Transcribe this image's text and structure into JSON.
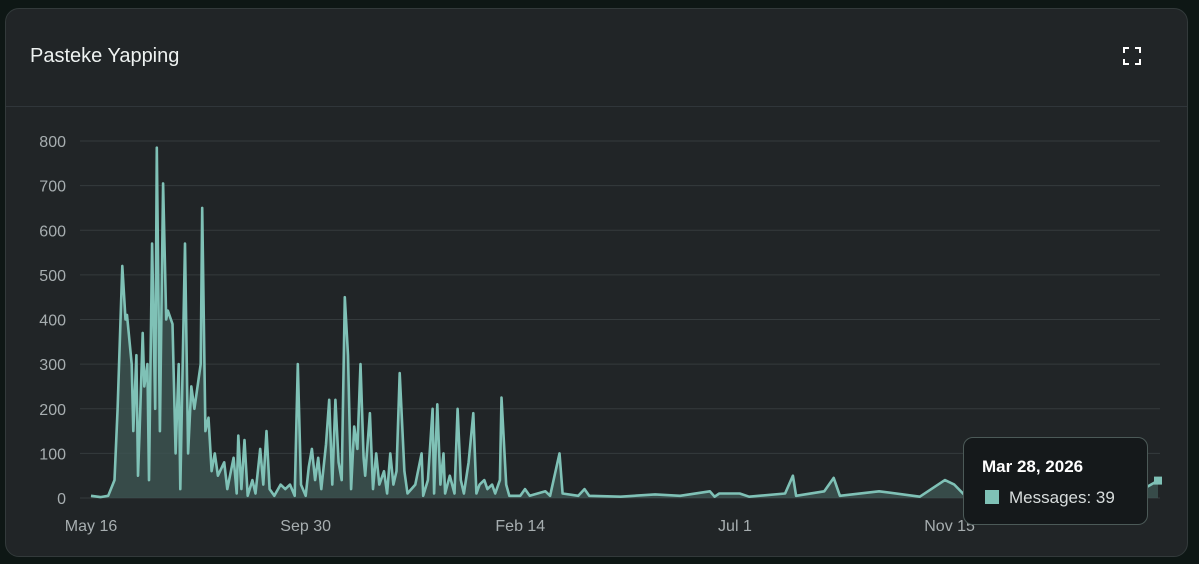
{
  "header": {
    "title": "Pasteke Yapping",
    "expand_icon": "expand-icon"
  },
  "colors": {
    "line": "#7fc1b6",
    "fill": "#3d5552",
    "grid": "#353b3d",
    "background": "#212527"
  },
  "tooltip": {
    "date": "Mar 28, 2026",
    "label": "Messages: 39",
    "series": "Messages",
    "value": 39
  },
  "chart_data": {
    "type": "area",
    "title": "Pasteke Yapping",
    "xlabel": "",
    "ylabel": "",
    "ylim": [
      0,
      800
    ],
    "xlim": [
      "2024-05-16",
      "2026-03-28"
    ],
    "grid": true,
    "yticks": [
      "0",
      "100",
      "200",
      "300",
      "400",
      "500",
      "600",
      "700",
      "800"
    ],
    "xticks": [
      {
        "label": "May 16",
        "date": "2024-05-16"
      },
      {
        "label": "Sep 30",
        "date": "2024-09-30"
      },
      {
        "label": "Feb 14",
        "date": "2025-02-14"
      },
      {
        "label": "Jul 1",
        "date": "2025-07-01"
      },
      {
        "label": "Nov 15",
        "date": "2025-11-15"
      }
    ],
    "series": [
      {
        "name": "Messages",
        "points": [
          [
            "2024-05-16",
            5
          ],
          [
            "2024-05-22",
            2
          ],
          [
            "2024-05-27",
            5
          ],
          [
            "2024-05-31",
            40
          ],
          [
            "2024-06-02",
            200
          ],
          [
            "2024-06-05",
            520
          ],
          [
            "2024-06-07",
            400
          ],
          [
            "2024-06-08",
            410
          ],
          [
            "2024-06-11",
            300
          ],
          [
            "2024-06-12",
            150
          ],
          [
            "2024-06-14",
            320
          ],
          [
            "2024-06-15",
            50
          ],
          [
            "2024-06-16",
            150
          ],
          [
            "2024-06-18",
            370
          ],
          [
            "2024-06-19",
            250
          ],
          [
            "2024-06-21",
            300
          ],
          [
            "2024-06-22",
            40
          ],
          [
            "2024-06-24",
            570
          ],
          [
            "2024-06-26",
            200
          ],
          [
            "2024-06-27",
            785
          ],
          [
            "2024-06-29",
            150
          ],
          [
            "2024-07-01",
            705
          ],
          [
            "2024-07-03",
            400
          ],
          [
            "2024-07-04",
            420
          ],
          [
            "2024-07-07",
            390
          ],
          [
            "2024-07-09",
            100
          ],
          [
            "2024-07-11",
            300
          ],
          [
            "2024-07-12",
            20
          ],
          [
            "2024-07-15",
            570
          ],
          [
            "2024-07-17",
            100
          ],
          [
            "2024-07-19",
            250
          ],
          [
            "2024-07-21",
            200
          ],
          [
            "2024-07-25",
            300
          ],
          [
            "2024-07-26",
            650
          ],
          [
            "2024-07-28",
            150
          ],
          [
            "2024-07-30",
            180
          ],
          [
            "2024-08-01",
            60
          ],
          [
            "2024-08-03",
            100
          ],
          [
            "2024-08-05",
            50
          ],
          [
            "2024-08-09",
            80
          ],
          [
            "2024-08-11",
            20
          ],
          [
            "2024-08-15",
            90
          ],
          [
            "2024-08-17",
            10
          ],
          [
            "2024-08-18",
            140
          ],
          [
            "2024-08-20",
            20
          ],
          [
            "2024-08-22",
            130
          ],
          [
            "2024-08-24",
            5
          ],
          [
            "2024-08-27",
            40
          ],
          [
            "2024-08-29",
            10
          ],
          [
            "2024-09-01",
            110
          ],
          [
            "2024-09-03",
            30
          ],
          [
            "2024-09-05",
            150
          ],
          [
            "2024-09-07",
            20
          ],
          [
            "2024-09-10",
            5
          ],
          [
            "2024-09-14",
            30
          ],
          [
            "2024-09-17",
            20
          ],
          [
            "2024-09-20",
            30
          ],
          [
            "2024-09-23",
            5
          ],
          [
            "2024-09-25",
            300
          ],
          [
            "2024-09-27",
            30
          ],
          [
            "2024-09-30",
            5
          ],
          [
            "2024-10-02",
            70
          ],
          [
            "2024-10-04",
            110
          ],
          [
            "2024-10-06",
            40
          ],
          [
            "2024-10-08",
            90
          ],
          [
            "2024-10-10",
            20
          ],
          [
            "2024-10-13",
            120
          ],
          [
            "2024-10-15",
            220
          ],
          [
            "2024-10-17",
            30
          ],
          [
            "2024-10-19",
            220
          ],
          [
            "2024-10-21",
            80
          ],
          [
            "2024-10-23",
            40
          ],
          [
            "2024-10-25",
            450
          ],
          [
            "2024-10-27",
            320
          ],
          [
            "2024-10-29",
            20
          ],
          [
            "2024-10-31",
            160
          ],
          [
            "2024-11-02",
            110
          ],
          [
            "2024-11-04",
            300
          ],
          [
            "2024-11-06",
            90
          ],
          [
            "2024-11-07",
            50
          ],
          [
            "2024-11-10",
            190
          ],
          [
            "2024-11-12",
            20
          ],
          [
            "2024-11-14",
            100
          ],
          [
            "2024-11-16",
            30
          ],
          [
            "2024-11-19",
            60
          ],
          [
            "2024-11-21",
            10
          ],
          [
            "2024-11-23",
            100
          ],
          [
            "2024-11-25",
            30
          ],
          [
            "2024-11-27",
            60
          ],
          [
            "2024-11-29",
            280
          ],
          [
            "2024-12-02",
            60
          ],
          [
            "2024-12-04",
            10
          ],
          [
            "2024-12-09",
            30
          ],
          [
            "2024-12-13",
            100
          ],
          [
            "2024-12-14",
            5
          ],
          [
            "2024-12-17",
            40
          ],
          [
            "2024-12-20",
            200
          ],
          [
            "2024-12-21",
            10
          ],
          [
            "2024-12-23",
            210
          ],
          [
            "2024-12-25",
            30
          ],
          [
            "2024-12-27",
            100
          ],
          [
            "2024-12-28",
            10
          ],
          [
            "2024-12-31",
            50
          ],
          [
            "2025-01-03",
            10
          ],
          [
            "2025-01-05",
            200
          ],
          [
            "2025-01-07",
            40
          ],
          [
            "2025-01-09",
            10
          ],
          [
            "2025-01-12",
            80
          ],
          [
            "2025-01-15",
            190
          ],
          [
            "2025-01-17",
            10
          ],
          [
            "2025-01-19",
            30
          ],
          [
            "2025-01-22",
            40
          ],
          [
            "2025-01-24",
            20
          ],
          [
            "2025-01-27",
            30
          ],
          [
            "2025-01-29",
            10
          ],
          [
            "2025-02-01",
            40
          ],
          [
            "2025-02-02",
            225
          ],
          [
            "2025-02-05",
            30
          ],
          [
            "2025-02-07",
            5
          ],
          [
            "2025-02-14",
            5
          ],
          [
            "2025-02-17",
            20
          ],
          [
            "2025-02-20",
            5
          ],
          [
            "2025-03-02",
            15
          ],
          [
            "2025-03-05",
            5
          ],
          [
            "2025-03-11",
            100
          ],
          [
            "2025-03-13",
            10
          ],
          [
            "2025-03-23",
            5
          ],
          [
            "2025-03-27",
            20
          ],
          [
            "2025-03-30",
            5
          ],
          [
            "2025-04-19",
            3
          ],
          [
            "2025-05-11",
            8
          ],
          [
            "2025-05-27",
            5
          ],
          [
            "2025-06-15",
            15
          ],
          [
            "2025-06-18",
            3
          ],
          [
            "2025-06-21",
            10
          ],
          [
            "2025-07-04",
            10
          ],
          [
            "2025-07-10",
            3
          ],
          [
            "2025-08-02",
            10
          ],
          [
            "2025-08-07",
            50
          ],
          [
            "2025-08-09",
            5
          ],
          [
            "2025-08-27",
            15
          ],
          [
            "2025-09-02",
            45
          ],
          [
            "2025-09-06",
            5
          ],
          [
            "2025-10-01",
            15
          ],
          [
            "2025-10-27",
            3
          ],
          [
            "2025-11-12",
            40
          ],
          [
            "2025-11-18",
            30
          ],
          [
            "2025-11-25",
            5
          ],
          [
            "2025-12-17",
            10
          ],
          [
            "2026-01-18",
            8
          ],
          [
            "2026-02-19",
            10
          ],
          [
            "2026-03-16",
            15
          ],
          [
            "2026-03-28",
            39
          ]
        ]
      }
    ]
  }
}
